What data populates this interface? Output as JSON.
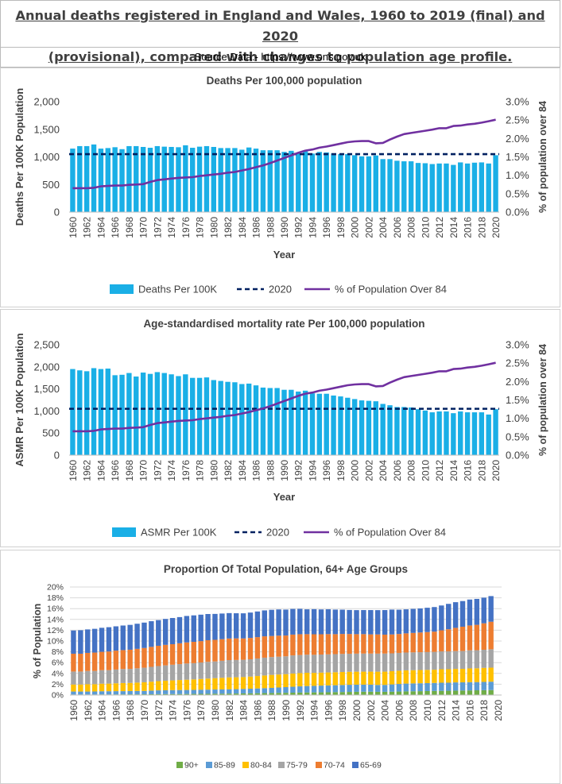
{
  "header": {
    "title_line1": "Annual deaths registered in England and Wales, 1960 to 2019 (final) and 2020",
    "title_line2": "(provisional), compared with changes to population age profile.",
    "source": "Source Data:- https://www.ons.gov.uk"
  },
  "colors": {
    "bar": "#1aafe6",
    "line_purple": "#7030a0",
    "dash_navy": "#002060",
    "age_90plus": "#70ad47",
    "age_85_89": "#5b9bd5",
    "age_80_84": "#ffc000",
    "age_75_79": "#a5a5a5",
    "age_70_74": "#ed7d31",
    "age_65_69": "#4472c4"
  },
  "chart_data": [
    {
      "type": "bar",
      "title": "Deaths Per 100,000 population",
      "xlabel": "Year",
      "ylabel": "Deaths Per 100K Population",
      "y2label": "% of population over 84",
      "ylim": [
        0,
        2000
      ],
      "yticks": [
        "0",
        "500",
        "1,000",
        "1,500",
        "2,000"
      ],
      "y2lim": [
        0,
        3.0
      ],
      "y2ticks": [
        "0.0%",
        "0.5%",
        "1.0%",
        "1.5%",
        "2.0%",
        "2.5%",
        "3.0%"
      ],
      "x_tick_labels": [
        "1960",
        "1962",
        "1964",
        "1966",
        "1968",
        "1970",
        "1972",
        "1974",
        "1976",
        "1978",
        "1980",
        "1982",
        "1984",
        "1986",
        "1988",
        "1990",
        "1992",
        "1994",
        "1996",
        "1998",
        "2000",
        "2002",
        "2004",
        "2006",
        "2008",
        "2010",
        "2012",
        "2014",
        "2016",
        "2018",
        "2020"
      ],
      "x": [
        1960,
        1961,
        1962,
        1963,
        1964,
        1965,
        1966,
        1967,
        1968,
        1969,
        1970,
        1971,
        1972,
        1973,
        1974,
        1975,
        1976,
        1977,
        1978,
        1979,
        1980,
        1981,
        1982,
        1983,
        1984,
        1985,
        1986,
        1987,
        1988,
        1989,
        1990,
        1991,
        1992,
        1993,
        1994,
        1995,
        1996,
        1997,
        1998,
        1999,
        2000,
        2001,
        2002,
        2003,
        2004,
        2005,
        2006,
        2007,
        2008,
        2009,
        2010,
        2011,
        2012,
        2013,
        2014,
        2015,
        2016,
        2017,
        2018,
        2019,
        2020
      ],
      "series": [
        {
          "name": "Deaths Per 100K",
          "kind": "bar",
          "values": [
            1150,
            1195,
            1195,
            1225,
            1150,
            1160,
            1175,
            1140,
            1195,
            1195,
            1180,
            1165,
            1195,
            1185,
            1180,
            1175,
            1210,
            1165,
            1185,
            1195,
            1180,
            1160,
            1160,
            1160,
            1130,
            1170,
            1150,
            1120,
            1120,
            1120,
            1090,
            1110,
            1070,
            1100,
            1060,
            1090,
            1080,
            1060,
            1050,
            1050,
            1030,
            1010,
            1010,
            1025,
            960,
            960,
            930,
            920,
            920,
            890,
            885,
            870,
            880,
            880,
            855,
            900,
            880,
            895,
            900,
            880,
            1030
          ]
        },
        {
          "name": "2020",
          "kind": "dashed-line",
          "value": 1050
        },
        {
          "name": "% of Population Over 84",
          "kind": "line",
          "axis": "secondary",
          "values": [
            0.65,
            0.65,
            0.65,
            0.66,
            0.7,
            0.71,
            0.72,
            0.72,
            0.74,
            0.75,
            0.76,
            0.82,
            0.87,
            0.89,
            0.91,
            0.93,
            0.94,
            0.95,
            0.98,
            1.0,
            1.02,
            1.04,
            1.07,
            1.09,
            1.13,
            1.17,
            1.22,
            1.27,
            1.33,
            1.4,
            1.47,
            1.54,
            1.61,
            1.67,
            1.7,
            1.75,
            1.78,
            1.82,
            1.86,
            1.9,
            1.92,
            1.93,
            1.93,
            1.87,
            1.88,
            1.97,
            2.05,
            2.12,
            2.15,
            2.18,
            2.21,
            2.24,
            2.28,
            2.28,
            2.34,
            2.35,
            2.38,
            2.4,
            2.43,
            2.47,
            2.51
          ]
        }
      ],
      "legend": {
        "position": "bottom",
        "entries": [
          "Deaths Per 100K",
          "2020",
          "% of Population Over 84"
        ]
      }
    },
    {
      "type": "bar",
      "title": "Age-standardised mortality rate Per 100,000 population",
      "xlabel": "Year",
      "ylabel": "ASMR Per 100K Population",
      "y2label": "% of population over 84",
      "ylim": [
        0,
        2500
      ],
      "yticks": [
        "0",
        "500",
        "1,000",
        "1,500",
        "2,000",
        "2,500"
      ],
      "y2lim": [
        0,
        3.0
      ],
      "y2ticks": [
        "0.0%",
        "0.5%",
        "1.0%",
        "1.5%",
        "2.0%",
        "2.5%",
        "3.0%"
      ],
      "x_tick_labels": [
        "1960",
        "1962",
        "1964",
        "1966",
        "1968",
        "1970",
        "1972",
        "1974",
        "1976",
        "1978",
        "1980",
        "1982",
        "1984",
        "1986",
        "1988",
        "1990",
        "1992",
        "1994",
        "1996",
        "1998",
        "2000",
        "2002",
        "2004",
        "2006",
        "2008",
        "2010",
        "2012",
        "2014",
        "2016",
        "2018",
        "2020"
      ],
      "x": [
        1960,
        1961,
        1962,
        1963,
        1964,
        1965,
        1966,
        1967,
        1968,
        1969,
        1970,
        1971,
        1972,
        1973,
        1974,
        1975,
        1976,
        1977,
        1978,
        1979,
        1980,
        1981,
        1982,
        1983,
        1984,
        1985,
        1986,
        1987,
        1988,
        1989,
        1990,
        1991,
        1992,
        1993,
        1994,
        1995,
        1996,
        1997,
        1998,
        1999,
        2000,
        2001,
        2002,
        2003,
        2004,
        2005,
        2006,
        2007,
        2008,
        2009,
        2010,
        2011,
        2012,
        2013,
        2014,
        2015,
        2016,
        2017,
        2018,
        2019,
        2020
      ],
      "series": [
        {
          "name": "ASMR Per 100K",
          "kind": "bar",
          "values": [
            1950,
            1920,
            1900,
            1970,
            1950,
            1960,
            1810,
            1820,
            1860,
            1780,
            1870,
            1840,
            1880,
            1860,
            1830,
            1790,
            1830,
            1750,
            1750,
            1760,
            1700,
            1680,
            1660,
            1650,
            1610,
            1620,
            1580,
            1530,
            1520,
            1520,
            1480,
            1480,
            1440,
            1460,
            1400,
            1390,
            1390,
            1350,
            1330,
            1300,
            1270,
            1240,
            1230,
            1220,
            1160,
            1130,
            1090,
            1090,
            1080,
            1040,
            1010,
            970,
            990,
            990,
            950,
            990,
            970,
            970,
            970,
            920,
            1040
          ]
        },
        {
          "name": "2020",
          "kind": "dashed-line",
          "value": 1050
        },
        {
          "name": "% of Population Over 84",
          "kind": "line",
          "axis": "secondary",
          "values": [
            0.65,
            0.65,
            0.65,
            0.66,
            0.7,
            0.71,
            0.72,
            0.72,
            0.74,
            0.75,
            0.76,
            0.82,
            0.87,
            0.89,
            0.91,
            0.93,
            0.94,
            0.95,
            0.98,
            1.0,
            1.02,
            1.04,
            1.07,
            1.09,
            1.13,
            1.17,
            1.22,
            1.27,
            1.33,
            1.4,
            1.47,
            1.54,
            1.61,
            1.67,
            1.7,
            1.75,
            1.78,
            1.82,
            1.86,
            1.9,
            1.92,
            1.93,
            1.93,
            1.87,
            1.88,
            1.97,
            2.05,
            2.12,
            2.15,
            2.18,
            2.21,
            2.24,
            2.28,
            2.28,
            2.34,
            2.35,
            2.38,
            2.4,
            2.43,
            2.47,
            2.51
          ]
        }
      ],
      "legend": {
        "position": "bottom",
        "entries": [
          "ASMR Per 100K",
          "2020",
          "% of Population Over 84"
        ]
      }
    },
    {
      "type": "bar",
      "stacked": true,
      "title": "Proportion Of Total Population, 64+ Age Groups",
      "ylabel": "% of Population",
      "ylim": [
        0,
        20
      ],
      "yticks": [
        "0%",
        "2%",
        "4%",
        "6%",
        "8%",
        "10%",
        "12%",
        "14%",
        "16%",
        "18%",
        "20%"
      ],
      "x_tick_labels": [
        "1960",
        "1962",
        "1964",
        "1966",
        "1968",
        "1970",
        "1972",
        "1974",
        "1976",
        "1978",
        "1980",
        "1982",
        "1984",
        "1986",
        "1988",
        "1990",
        "1992",
        "1994",
        "1996",
        "1998",
        "2000",
        "2002",
        "2004",
        "2006",
        "2008",
        "2010",
        "2012",
        "2014",
        "2016",
        "2018",
        "2020"
      ],
      "x": [
        1960,
        1961,
        1962,
        1963,
        1964,
        1965,
        1966,
        1967,
        1968,
        1969,
        1970,
        1971,
        1972,
        1973,
        1974,
        1975,
        1976,
        1977,
        1978,
        1979,
        1980,
        1981,
        1982,
        1983,
        1984,
        1985,
        1986,
        1987,
        1988,
        1989,
        1990,
        1991,
        1992,
        1993,
        1994,
        1995,
        1996,
        1997,
        1998,
        1999,
        2000,
        2001,
        2002,
        2003,
        2004,
        2005,
        2006,
        2007,
        2008,
        2009,
        2010,
        2011,
        2012,
        2013,
        2014,
        2015,
        2016,
        2017,
        2018,
        2019
      ],
      "series": [
        {
          "name": "90+",
          "values": [
            0.1,
            0.1,
            0.1,
            0.1,
            0.11,
            0.11,
            0.12,
            0.12,
            0.13,
            0.13,
            0.14,
            0.15,
            0.16,
            0.17,
            0.18,
            0.19,
            0.2,
            0.21,
            0.22,
            0.23,
            0.24,
            0.25,
            0.27,
            0.28,
            0.3,
            0.32,
            0.34,
            0.36,
            0.38,
            0.4,
            0.42,
            0.44,
            0.46,
            0.48,
            0.49,
            0.5,
            0.52,
            0.54,
            0.56,
            0.58,
            0.6,
            0.62,
            0.62,
            0.6,
            0.6,
            0.62,
            0.65,
            0.68,
            0.7,
            0.72,
            0.74,
            0.76,
            0.78,
            0.8,
            0.82,
            0.84,
            0.86,
            0.88,
            0.9,
            0.92
          ]
        },
        {
          "name": "85-89",
          "values": [
            0.55,
            0.55,
            0.55,
            0.56,
            0.59,
            0.6,
            0.6,
            0.6,
            0.61,
            0.62,
            0.62,
            0.67,
            0.71,
            0.72,
            0.73,
            0.74,
            0.74,
            0.74,
            0.76,
            0.77,
            0.78,
            0.79,
            0.8,
            0.81,
            0.83,
            0.85,
            0.88,
            0.91,
            0.95,
            1.0,
            1.05,
            1.1,
            1.15,
            1.19,
            1.21,
            1.25,
            1.26,
            1.28,
            1.3,
            1.32,
            1.32,
            1.31,
            1.31,
            1.27,
            1.28,
            1.35,
            1.4,
            1.44,
            1.45,
            1.46,
            1.47,
            1.48,
            1.5,
            1.48,
            1.52,
            1.51,
            1.52,
            1.52,
            1.53,
            1.55
          ]
        },
        {
          "name": "80-84",
          "values": [
            1.3,
            1.3,
            1.35,
            1.35,
            1.4,
            1.4,
            1.45,
            1.5,
            1.5,
            1.55,
            1.6,
            1.65,
            1.7,
            1.75,
            1.8,
            1.85,
            1.9,
            1.95,
            2.0,
            2.05,
            2.1,
            2.15,
            2.2,
            2.2,
            2.2,
            2.25,
            2.3,
            2.35,
            2.4,
            2.4,
            2.4,
            2.45,
            2.45,
            2.45,
            2.4,
            2.4,
            2.4,
            2.4,
            2.4,
            2.4,
            2.4,
            2.4,
            2.4,
            2.45,
            2.45,
            2.45,
            2.45,
            2.45,
            2.45,
            2.45,
            2.45,
            2.45,
            2.5,
            2.5,
            2.5,
            2.5,
            2.55,
            2.55,
            2.6,
            2.6
          ]
        },
        {
          "name": "75-79",
          "values": [
            2.4,
            2.4,
            2.45,
            2.45,
            2.5,
            2.5,
            2.55,
            2.6,
            2.6,
            2.65,
            2.7,
            2.75,
            2.8,
            2.85,
            2.9,
            2.95,
            3.0,
            3.0,
            3.05,
            3.1,
            3.1,
            3.15,
            3.2,
            3.2,
            3.2,
            3.2,
            3.25,
            3.3,
            3.3,
            3.3,
            3.3,
            3.35,
            3.35,
            3.35,
            3.35,
            3.35,
            3.35,
            3.35,
            3.35,
            3.35,
            3.35,
            3.35,
            3.35,
            3.35,
            3.35,
            3.3,
            3.3,
            3.3,
            3.3,
            3.3,
            3.3,
            3.3,
            3.3,
            3.3,
            3.3,
            3.3,
            3.35,
            3.35,
            3.35,
            3.4
          ]
        },
        {
          "name": "70-74",
          "values": [
            3.3,
            3.3,
            3.35,
            3.4,
            3.4,
            3.45,
            3.5,
            3.5,
            3.55,
            3.6,
            3.65,
            3.7,
            3.75,
            3.8,
            3.8,
            3.85,
            3.9,
            3.95,
            3.95,
            4.0,
            4.0,
            4.0,
            4.0,
            4.0,
            3.95,
            3.95,
            3.95,
            3.95,
            3.9,
            3.9,
            3.85,
            3.85,
            3.85,
            3.8,
            3.8,
            3.75,
            3.75,
            3.7,
            3.7,
            3.65,
            3.6,
            3.6,
            3.55,
            3.55,
            3.5,
            3.5,
            3.5,
            3.55,
            3.6,
            3.65,
            3.7,
            3.75,
            3.9,
            4.1,
            4.3,
            4.5,
            4.6,
            4.7,
            4.9,
            5.1
          ]
        },
        {
          "name": "65-69",
          "values": [
            4.3,
            4.35,
            4.35,
            4.4,
            4.45,
            4.5,
            4.5,
            4.55,
            4.6,
            4.65,
            4.7,
            4.75,
            4.75,
            4.8,
            4.85,
            4.85,
            4.9,
            4.9,
            4.9,
            4.85,
            4.8,
            4.75,
            4.7,
            4.65,
            4.65,
            4.7,
            4.75,
            4.8,
            4.85,
            4.85,
            4.8,
            4.75,
            4.7,
            4.6,
            4.65,
            4.6,
            4.6,
            4.55,
            4.5,
            4.45,
            4.45,
            4.45,
            4.5,
            4.5,
            4.55,
            4.6,
            4.5,
            4.45,
            4.45,
            4.45,
            4.5,
            4.55,
            4.6,
            4.7,
            4.75,
            4.75,
            4.8,
            4.8,
            4.75,
            4.75
          ]
        }
      ],
      "legend": {
        "position": "bottom",
        "entries": [
          "90+",
          "85-89",
          "80-84",
          "75-79",
          "70-74",
          "65-69"
        ]
      }
    }
  ]
}
